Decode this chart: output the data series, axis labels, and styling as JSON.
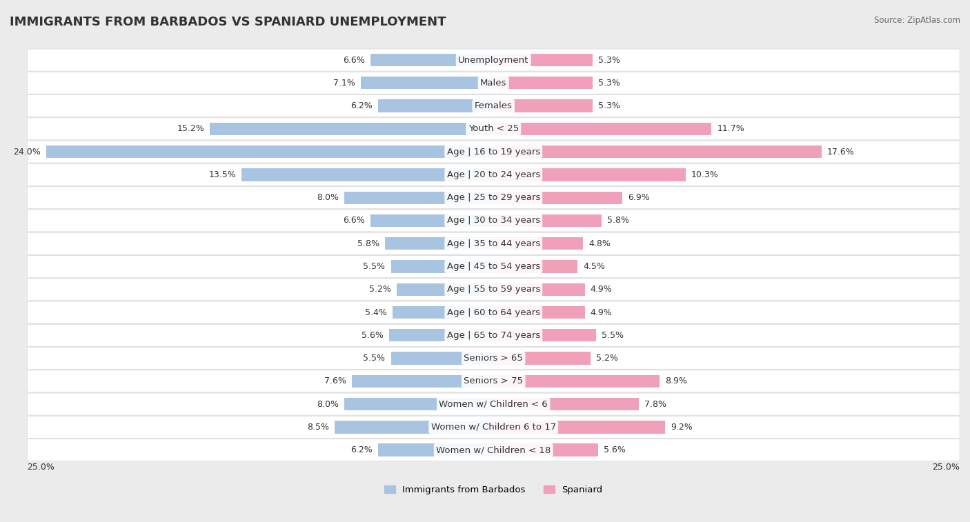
{
  "title": "IMMIGRANTS FROM BARBADOS VS SPANIARD UNEMPLOYMENT",
  "source": "Source: ZipAtlas.com",
  "categories": [
    "Unemployment",
    "Males",
    "Females",
    "Youth < 25",
    "Age | 16 to 19 years",
    "Age | 20 to 24 years",
    "Age | 25 to 29 years",
    "Age | 30 to 34 years",
    "Age | 35 to 44 years",
    "Age | 45 to 54 years",
    "Age | 55 to 59 years",
    "Age | 60 to 64 years",
    "Age | 65 to 74 years",
    "Seniors > 65",
    "Seniors > 75",
    "Women w/ Children < 6",
    "Women w/ Children 6 to 17",
    "Women w/ Children < 18"
  ],
  "barbados_values": [
    6.6,
    7.1,
    6.2,
    15.2,
    24.0,
    13.5,
    8.0,
    6.6,
    5.8,
    5.5,
    5.2,
    5.4,
    5.6,
    5.5,
    7.6,
    8.0,
    8.5,
    6.2
  ],
  "spaniard_values": [
    5.3,
    5.3,
    5.3,
    11.7,
    17.6,
    10.3,
    6.9,
    5.8,
    4.8,
    4.5,
    4.9,
    4.9,
    5.5,
    5.2,
    8.9,
    7.8,
    9.2,
    5.6
  ],
  "barbados_color": "#a8c4e0",
  "spaniard_color": "#f0a0b8",
  "max_val": 25.0,
  "bg_color": "#ebebeb",
  "bar_bg_color": "#ffffff",
  "title_fontsize": 13,
  "label_fontsize": 9.5,
  "value_fontsize": 9.0,
  "legend_label_barbados": "Immigrants from Barbados",
  "legend_label_spaniard": "Spaniard"
}
